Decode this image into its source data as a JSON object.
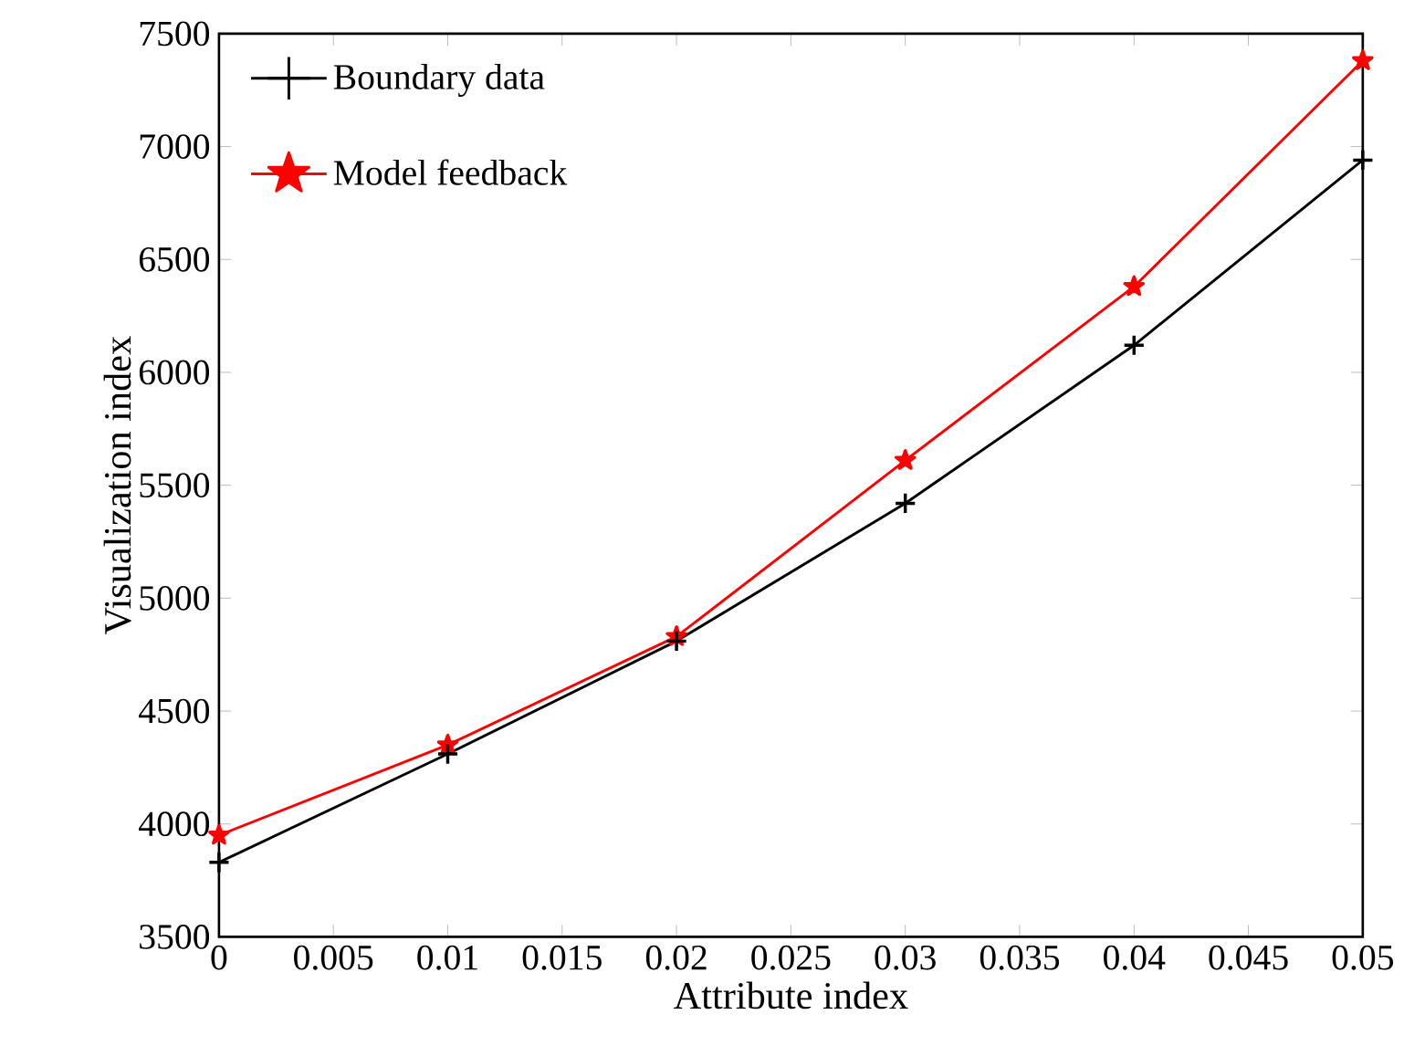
{
  "chart_data": {
    "type": "line",
    "xlabel": "Attribute index",
    "ylabel": "Visualization index",
    "x": [
      0,
      0.01,
      0.02,
      0.03,
      0.04,
      0.05
    ],
    "series": [
      {
        "name": "Boundary data",
        "color": "#000000",
        "marker": "cross",
        "values": [
          3830,
          4310,
          4810,
          5420,
          6120,
          6940
        ]
      },
      {
        "name": "Model feedback",
        "color": "#ff0000",
        "marker": "star",
        "values": [
          3950,
          4350,
          4830,
          5610,
          6380,
          7380
        ]
      }
    ],
    "xlim": [
      0,
      0.05
    ],
    "xticks": [
      0,
      0.005,
      0.01,
      0.015,
      0.02,
      0.025,
      0.03,
      0.035,
      0.04,
      0.045,
      0.05
    ],
    "ylim": [
      3500,
      7500
    ],
    "yticks": [
      3500,
      4000,
      4500,
      5000,
      5500,
      6000,
      6500,
      7000,
      7500
    ],
    "legend": "top left",
    "grid": false,
    "line_style": "solid"
  }
}
